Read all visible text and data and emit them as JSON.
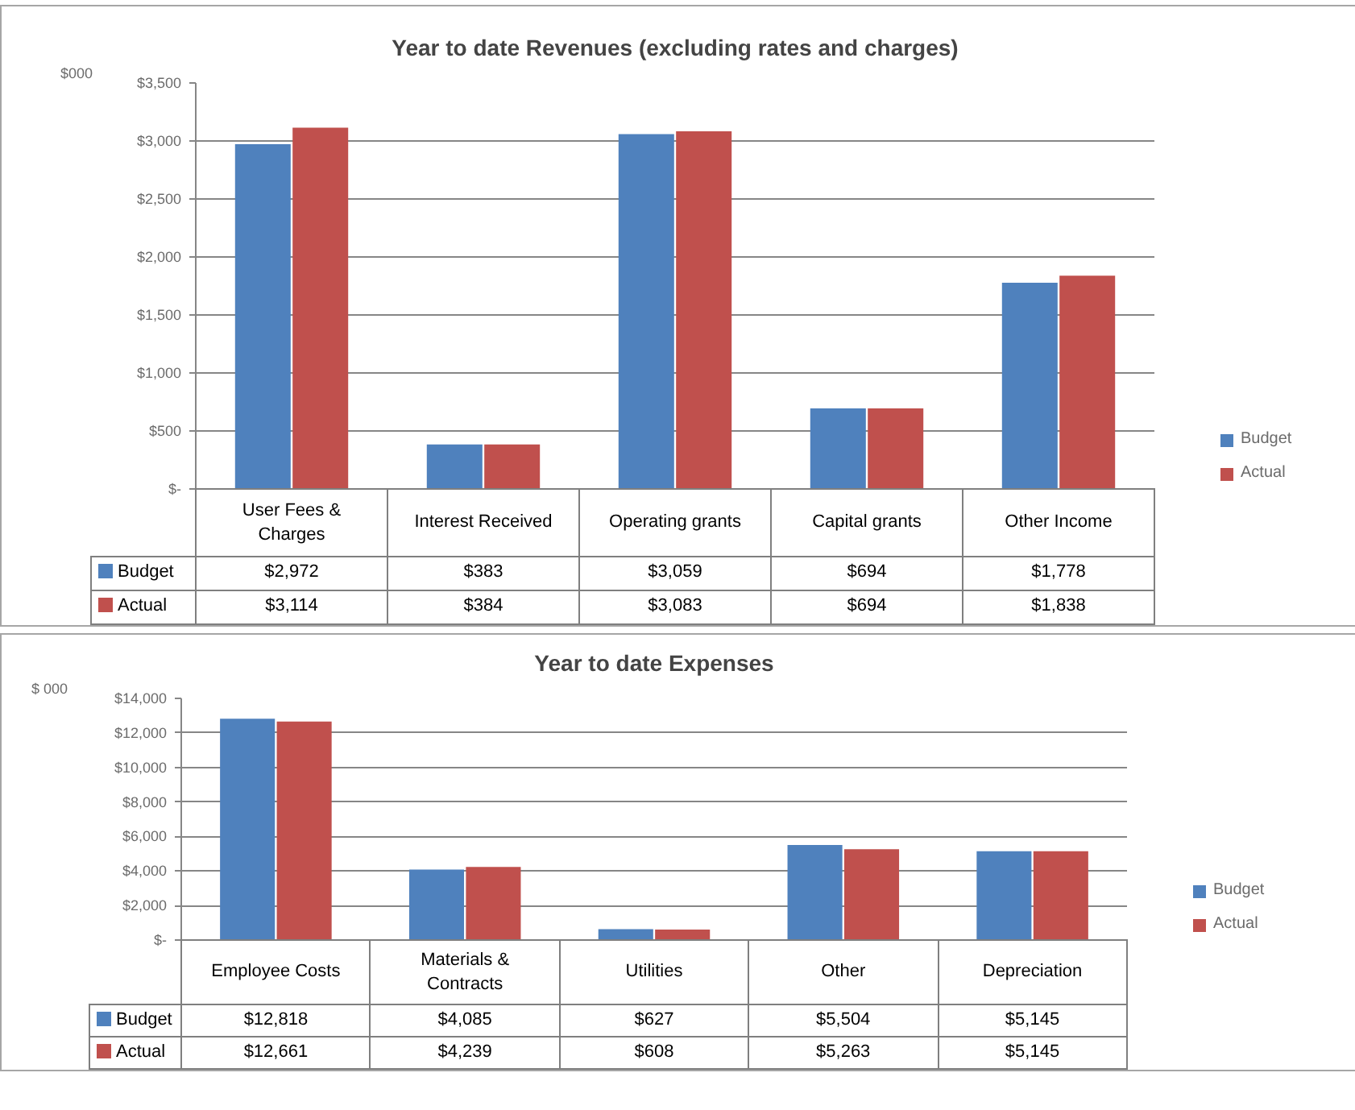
{
  "chart_data": [
    {
      "type": "bar",
      "title": "Year to date Revenues (excluding rates and charges)",
      "ylabel": "$000",
      "categories": [
        "User Fees & Charges",
        "Interest Received",
        "Operating grants",
        "Capital grants",
        "Other Income"
      ],
      "series": [
        {
          "name": "Budget",
          "color": "#4f81bd",
          "values": [
            2972,
            383,
            3059,
            694,
            1778
          ],
          "value_labels": [
            "$2,972",
            "$383",
            "$3,059",
            "$694",
            "$1,778"
          ]
        },
        {
          "name": "Actual",
          "color": "#c0504d",
          "values": [
            3114,
            384,
            3083,
            694,
            1838
          ],
          "value_labels": [
            "$3,114",
            "$384",
            "$3,083",
            "$694",
            "$1,838"
          ]
        }
      ],
      "ylim": [
        0,
        3500
      ],
      "yticks": [
        {
          "value": 0,
          "label": "$-"
        },
        {
          "value": 500,
          "label": "$500"
        },
        {
          "value": 1000,
          "label": "$1,000"
        },
        {
          "value": 1500,
          "label": "$1,500"
        },
        {
          "value": 2000,
          "label": "$2,000"
        },
        {
          "value": 2500,
          "label": "$2,500"
        },
        {
          "value": 3000,
          "label": "$3,000"
        },
        {
          "value": 3500,
          "label": "$3,500"
        }
      ],
      "grid": "y",
      "legend": "right"
    },
    {
      "type": "bar",
      "title": "Year to date Expenses",
      "ylabel": "$ 000",
      "categories": [
        "Employee Costs",
        "Materials & Contracts",
        "Utilities",
        "Other",
        "Depreciation"
      ],
      "series": [
        {
          "name": "Budget",
          "color": "#4f81bd",
          "values": [
            12818,
            4085,
            627,
            5504,
            5145
          ],
          "value_labels": [
            "$12,818",
            "$4,085",
            "$627",
            "$5,504",
            "$5,145"
          ]
        },
        {
          "name": "Actual",
          "color": "#c0504d",
          "values": [
            12661,
            4239,
            608,
            5263,
            5145
          ],
          "value_labels": [
            "$12,661",
            "$4,239",
            "$608",
            "$5,263",
            "$5,145"
          ]
        }
      ],
      "ylim": [
        0,
        14000
      ],
      "yticks": [
        {
          "value": 0,
          "label": "$-"
        },
        {
          "value": 2000,
          "label": "$2,000"
        },
        {
          "value": 4000,
          "label": "$4,000"
        },
        {
          "value": 6000,
          "label": "$6,000"
        },
        {
          "value": 8000,
          "label": "$8,000"
        },
        {
          "value": 10000,
          "label": "$10,000"
        },
        {
          "value": 12000,
          "label": "$12,000"
        },
        {
          "value": 14000,
          "label": "$14,000"
        }
      ],
      "grid": "y",
      "legend": "right"
    }
  ]
}
